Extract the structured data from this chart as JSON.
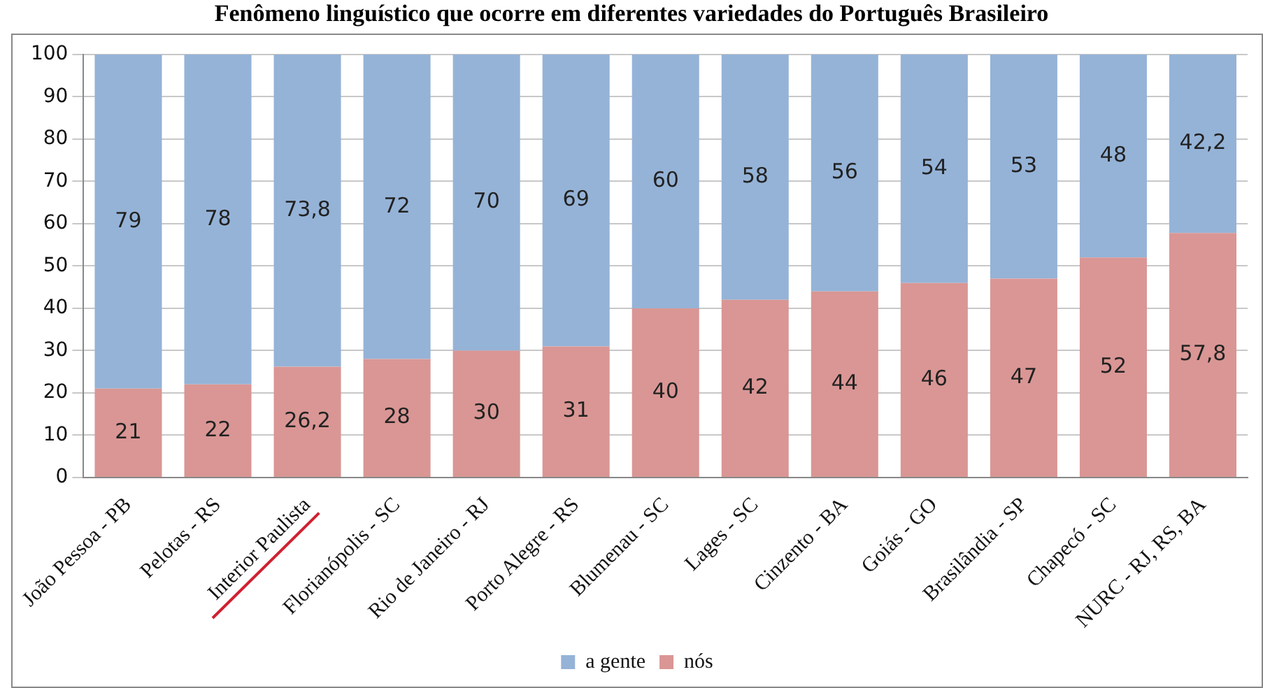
{
  "chart_data": {
    "type": "bar",
    "stacked": true,
    "title": "Fenômeno linguístico que ocorre em diferentes variedades do Português Brasileiro",
    "categories": [
      "João Pessoa - PB",
      "Pelotas - RS",
      "Interior Paulista",
      "Florianópolis - SC",
      "Rio de Janeiro - RJ",
      "Porto Alegre - RS",
      "Blumenau - SC",
      "Lages - SC",
      "Cinzento - BA",
      "Goiás - GO",
      "Brasilândia - SP",
      "Chapecó - SC",
      "NURC - RJ, RS, BA"
    ],
    "series": [
      {
        "name": "nós",
        "color": "#d99694",
        "values": [
          21,
          22,
          26.2,
          28,
          30,
          31,
          40,
          42,
          44,
          46,
          47,
          52,
          57.8
        ],
        "value_labels": [
          "21",
          "22",
          "26,2",
          "28",
          "30",
          "31",
          "40",
          "42",
          "44",
          "46",
          "47",
          "52",
          "57,8"
        ]
      },
      {
        "name": "a gente",
        "color": "#95b3d7",
        "values": [
          79,
          78,
          73.8,
          72,
          70,
          69,
          60,
          58,
          56,
          54,
          53,
          48,
          42.2
        ],
        "value_labels": [
          "79",
          "78",
          "73,8",
          "72",
          "70",
          "69",
          "60",
          "58",
          "56",
          "54",
          "53",
          "48",
          "42,2"
        ]
      }
    ],
    "ylim": [
      0,
      100
    ],
    "yticks": [
      0,
      10,
      20,
      30,
      40,
      50,
      60,
      70,
      80,
      90,
      100
    ],
    "grid": "y",
    "legend": "bottom"
  }
}
